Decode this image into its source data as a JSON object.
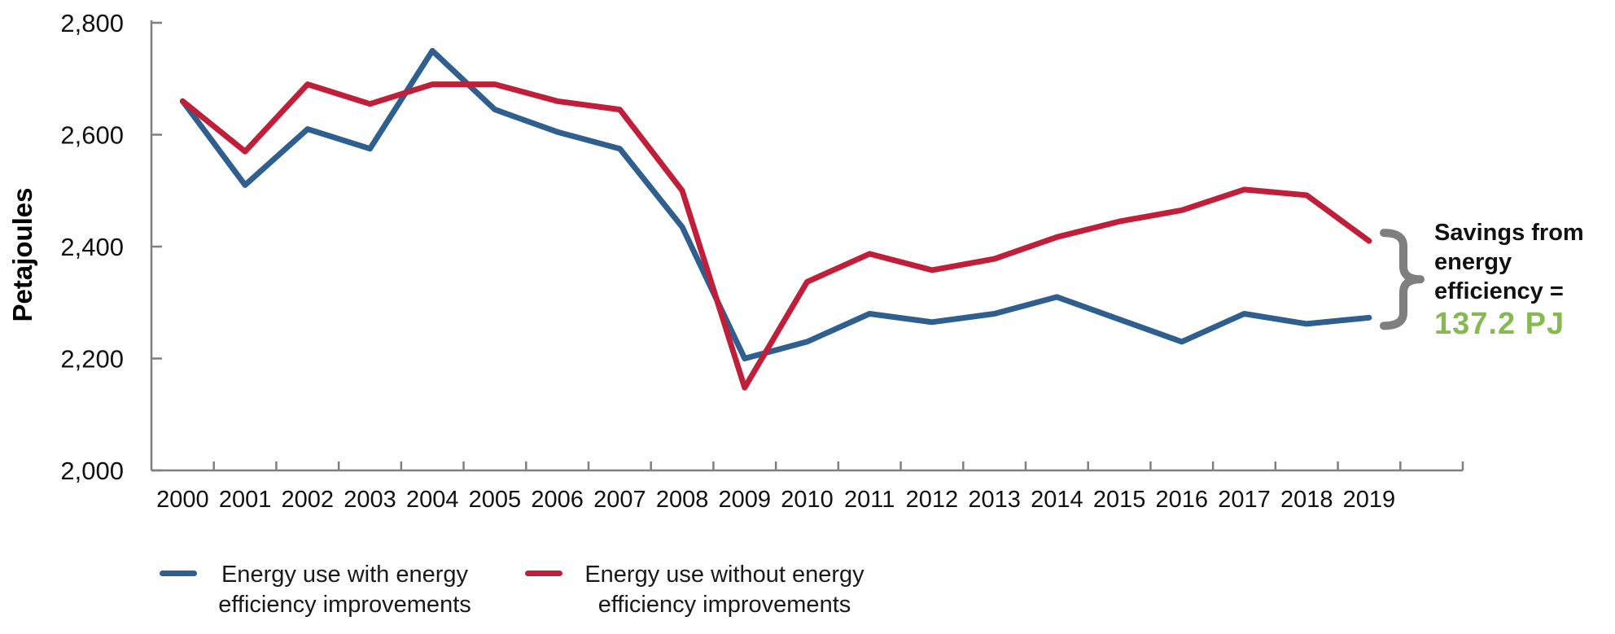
{
  "chart_data": {
    "type": "line",
    "title": "",
    "xlabel": "",
    "ylabel": "Petajoules",
    "categories": [
      "2000",
      "2001",
      "2002",
      "2003",
      "2004",
      "2005",
      "2006",
      "2007",
      "2008",
      "2009",
      "2010",
      "2011",
      "2012",
      "2013",
      "2014",
      "2015",
      "2016",
      "2017",
      "2018",
      "2019"
    ],
    "series": [
      {
        "name": "Energy use with energy efficiency improvements",
        "color": "#2F5F8F",
        "values": [
          2660,
          2510,
          2610,
          2575,
          2750,
          2645,
          2605,
          2575,
          2435,
          2200,
          2230,
          2280,
          2265,
          2280,
          2310,
          2270,
          2230,
          2280,
          2262,
          2273
        ]
      },
      {
        "name": "Energy use without energy efficiency improvements",
        "color": "#C01F3A",
        "values": [
          2660,
          2570,
          2690,
          2655,
          2690,
          2690,
          2660,
          2645,
          2500,
          2148,
          2337,
          2387,
          2358,
          2378,
          2417,
          2445,
          2465,
          2502,
          2492,
          2410
        ]
      }
    ],
    "ylim": [
      2000,
      2800
    ],
    "y_tick_values": [
      2000,
      2200,
      2400,
      2600,
      2800
    ],
    "y_tick_labels": [
      "2,000",
      "2,200",
      "2,400",
      "2,600",
      "2,800"
    ],
    "grid": "off",
    "legend_position": "bottom",
    "axis_color": "#7F7F7F"
  },
  "legend": {
    "items": [
      {
        "label": "Energy use with energy efficiency improvements",
        "color": "#2F5F8F"
      },
      {
        "label": "Energy use without energy efficiency improvements",
        "color": "#C01F3A"
      }
    ]
  },
  "annotation": {
    "label": "Savings from energy efficiency =",
    "value": "137.2 PJ",
    "value_color": "#86B950",
    "brace_color": "#7F7F7F"
  }
}
